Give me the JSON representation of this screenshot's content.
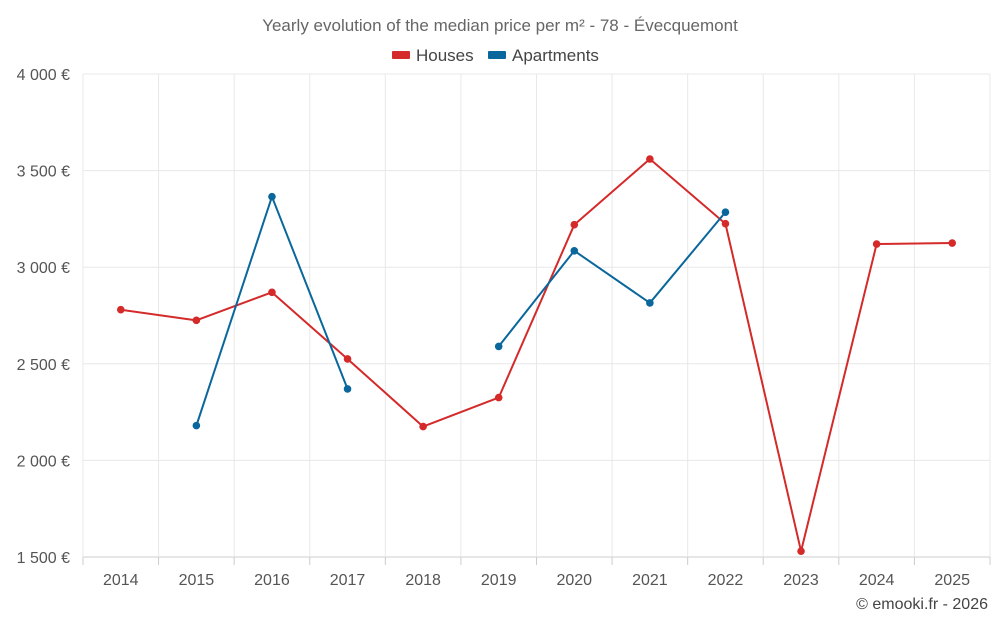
{
  "chart_data": {
    "type": "line",
    "title": "Yearly evolution of the median price per m² - 78 - Évecquemont",
    "categories": [
      "2014",
      "2015",
      "2016",
      "2017",
      "2018",
      "2019",
      "2020",
      "2021",
      "2022",
      "2023",
      "2024",
      "2025"
    ],
    "series": [
      {
        "name": "Houses",
        "color": "#d42a2a",
        "values": [
          2780,
          2725,
          2870,
          2525,
          2175,
          2325,
          3220,
          3560,
          3225,
          1530,
          3120,
          3125
        ]
      },
      {
        "name": "Apartments",
        "color": "#0a679c",
        "values": [
          null,
          2180,
          3365,
          2370,
          null,
          2590,
          3085,
          2815,
          3285,
          null,
          null,
          null
        ]
      }
    ],
    "yticks": [
      1500,
      2000,
      2500,
      3000,
      3500,
      4000
    ],
    "ytick_labels": [
      "1 500 €",
      "2 000 €",
      "2 500 €",
      "3 000 €",
      "3 500 €",
      "4 000 €"
    ],
    "ylim": [
      1500,
      4000
    ],
    "xlabel": "",
    "ylabel": "",
    "legend_position": "top-center",
    "grid": true
  },
  "credit": "© emooki.fr - 2026"
}
